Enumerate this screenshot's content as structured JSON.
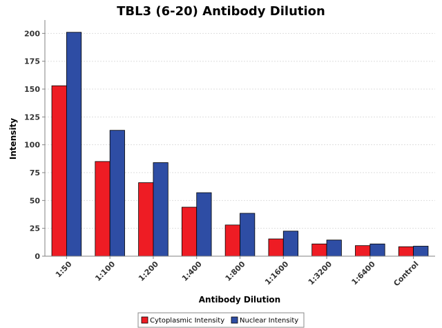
{
  "chart_data": {
    "type": "bar",
    "title": "TBL3 (6-20) Antibody Dilution",
    "xlabel": "Antibody Dilution",
    "ylabel": "Intensity",
    "ylim": [
      0,
      212
    ],
    "yticks": [
      0,
      25,
      50,
      75,
      100,
      125,
      150,
      175,
      200
    ],
    "grid": true,
    "legend_position": "bottom",
    "categories": [
      "1:50",
      "1:100",
      "1:200",
      "1:400",
      "1:800",
      "1:1600",
      "1:3200",
      "1:6400",
      "Control"
    ],
    "series": [
      {
        "name": "Cytoplasmic Intensity",
        "color": "#ee1c24",
        "values": [
          153,
          85,
          66,
          44,
          28,
          15.5,
          11,
          9.5,
          8.5
        ]
      },
      {
        "name": "Nuclear Intensity",
        "color": "#2e4da4",
        "values": [
          201,
          113,
          84,
          57,
          38.5,
          22.5,
          14.5,
          11,
          9
        ]
      }
    ]
  }
}
